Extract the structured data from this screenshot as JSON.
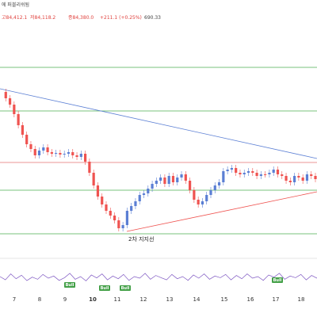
{
  "header": {
    "title_fragment": "에 퍼블리쉬됨",
    "open": "고84,412.1",
    "high": "저84,118.2",
    "close": "종84,380.0",
    "change": "+211.1 (+0.25%)",
    "last": "690.33"
  },
  "colors": {
    "up": "#26a69a",
    "down": "#ef5350",
    "support_line": "#4caf50",
    "resistance_band": "#e57373",
    "upper_trendline": "#5b7fd4",
    "lower_trendline": "#ef5350",
    "oscillator": "#7e57c2",
    "bull_tag": "#43a047"
  },
  "chart_data": {
    "type": "candlestick",
    "title": "",
    "x_tick_labels": [
      "7",
      "8",
      "9",
      "10",
      "11",
      "12",
      "13",
      "14",
      "15",
      "16",
      "17",
      "18"
    ],
    "price_series": [
      108,
      116,
      124,
      136,
      150,
      162,
      174,
      180,
      188,
      182,
      178,
      184,
      186,
      185,
      187,
      186,
      184,
      188,
      190,
      186,
      196,
      210,
      226,
      240,
      250,
      258,
      264,
      270,
      280,
      276,
      258,
      252,
      246,
      238,
      236,
      230,
      224,
      220,
      216,
      224,
      214,
      222,
      216,
      212,
      220,
      232,
      244,
      250,
      246,
      238,
      232,
      226,
      222,
      208,
      206,
      204,
      210,
      212,
      210,
      208,
      210,
      214,
      212,
      212,
      210,
      206,
      212,
      214,
      220,
      222,
      214,
      216,
      220,
      212,
      214,
      218
    ],
    "horizontal_levels": [
      {
        "kind": "support",
        "value_pct": 0.2
      },
      {
        "kind": "support",
        "value_pct": 0.35
      },
      {
        "kind": "support",
        "value_pct": 0.62
      },
      {
        "kind": "support",
        "value_pct": 0.77
      },
      {
        "kind": "resistance_band",
        "value_pct": 0.47
      }
    ],
    "annotations": [
      {
        "text": "2차 지지선",
        "x_tick": "11"
      }
    ],
    "oscillator": {
      "type": "line",
      "values": [
        50,
        38,
        60,
        42,
        55,
        35,
        48,
        40,
        58,
        44,
        52,
        36,
        46,
        62,
        40,
        50,
        34,
        56,
        45,
        60,
        38,
        52,
        42,
        58,
        36,
        50,
        44,
        62,
        40,
        54,
        46,
        38,
        58,
        42,
        50,
        36,
        56,
        44,
        60,
        40,
        52,
        46,
        58,
        38,
        54,
        42,
        60,
        44,
        50,
        36,
        56,
        48,
        62,
        40,
        52,
        46,
        58,
        38,
        54,
        44
      ],
      "signals": [
        {
          "label": "Bull",
          "x_tick": "8"
        },
        {
          "label": "Bull",
          "x_tick": "10"
        },
        {
          "label": "Bull",
          "x_tick": "11"
        },
        {
          "label": "Bull",
          "x_tick": "17"
        }
      ]
    }
  }
}
